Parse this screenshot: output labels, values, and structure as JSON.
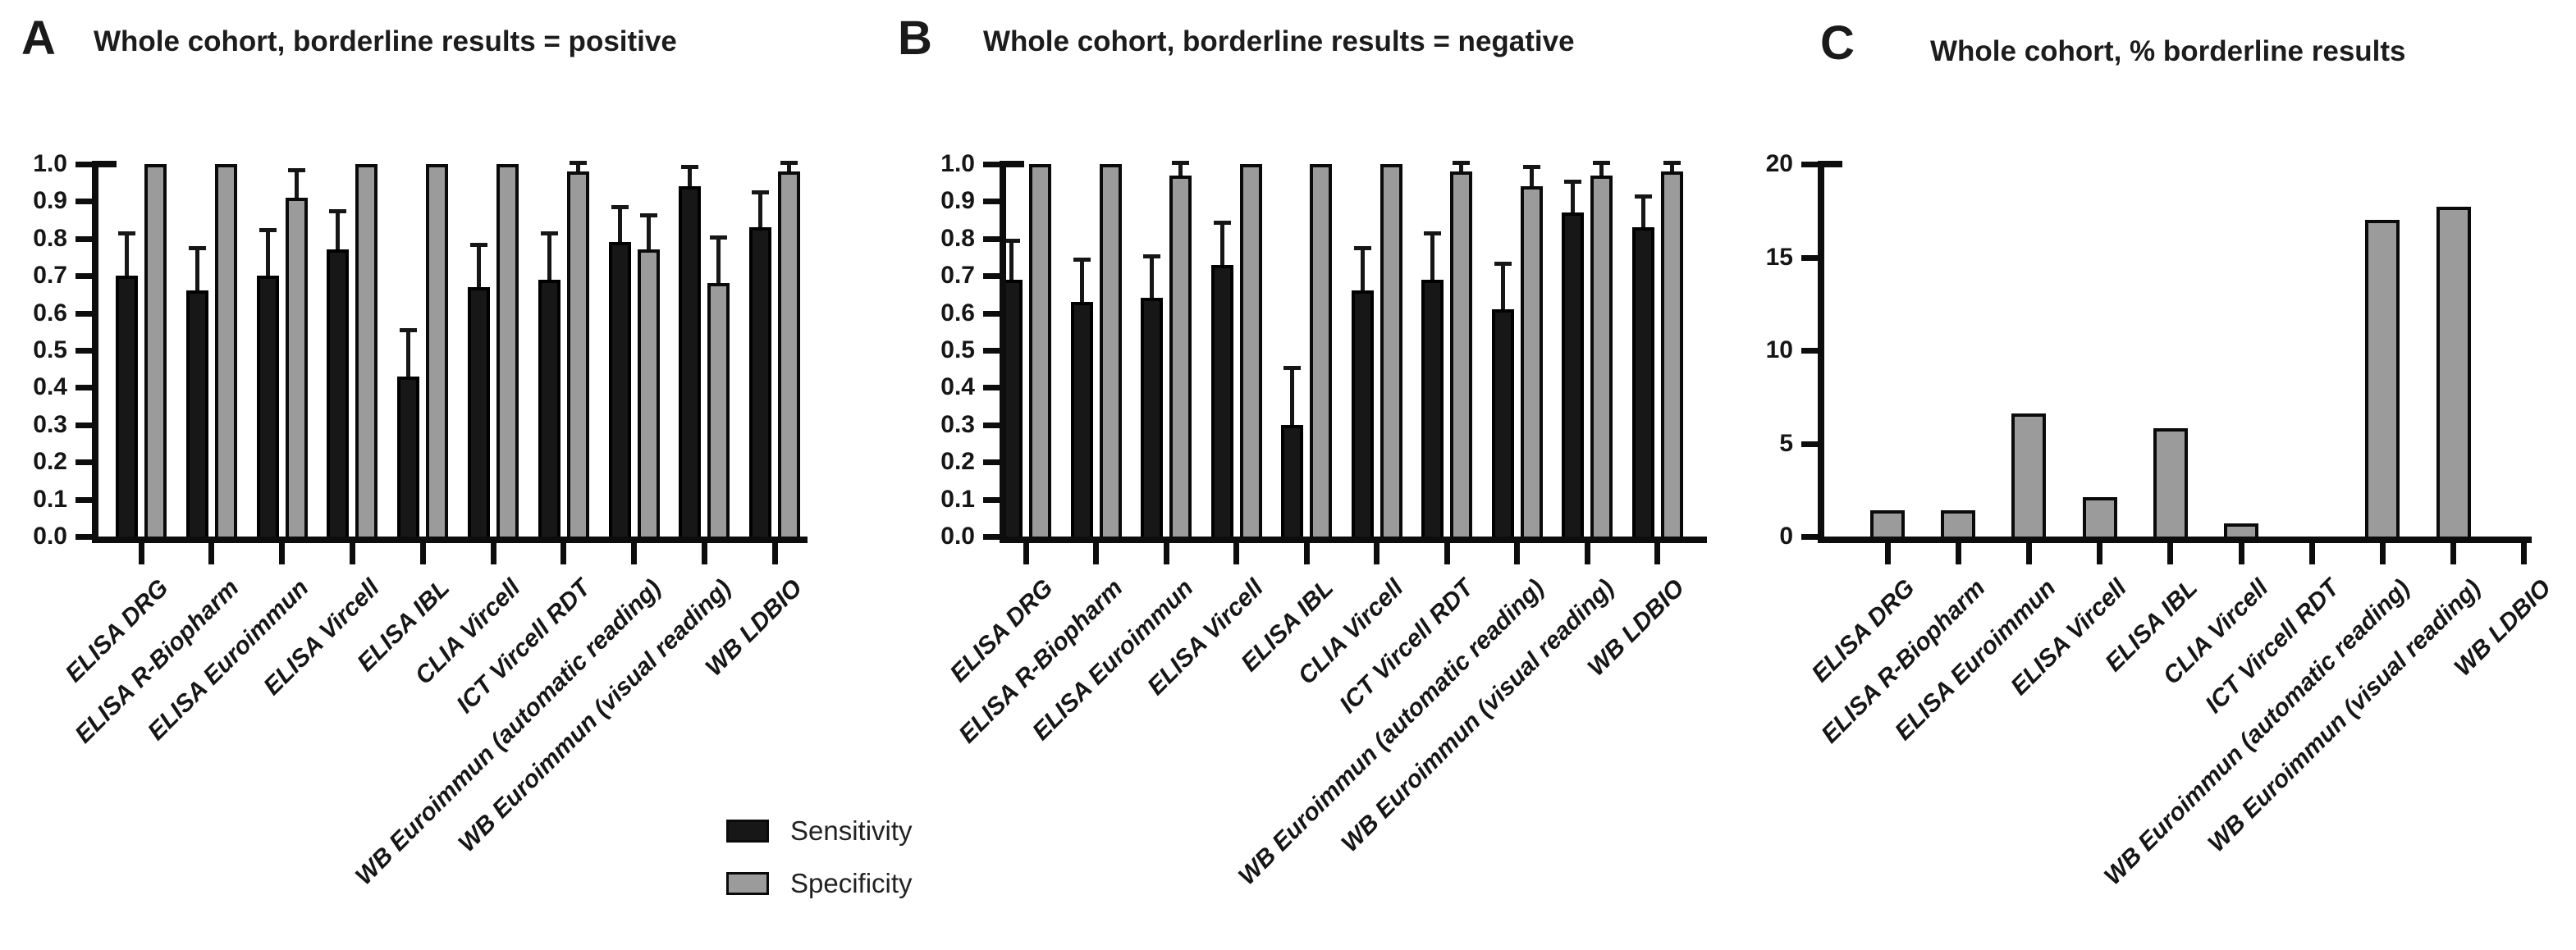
{
  "legend": {
    "items": [
      {
        "label": "Sensitivity",
        "color": "#171717"
      },
      {
        "label": "Specificity",
        "color": "#9b9b9b"
      }
    ]
  },
  "colors": {
    "sensitivity_bar": "#171717",
    "specificity_bar": "#9b9b9b",
    "axis": "#0d0d0d",
    "background": "#ffffff"
  },
  "categories": [
    "ELISA DRG",
    "ELISA R-Biopharm",
    "ELISA Euroimmun",
    "ELISA Vircell",
    "ELISA IBL",
    "CLIA Vircell",
    "ICT Vircell RDT",
    "WB Euroimmun (automatic reading)",
    "WB Euroimmun (visual reading)",
    "WB LDBIO"
  ],
  "chart_data": [
    {
      "panel": "A",
      "type": "bar",
      "title": "Whole cohort, borderline results = positive",
      "xlabel": "",
      "ylabel": "",
      "ylim": [
        0.0,
        1.0
      ],
      "ytick_labels": [
        "0.0",
        "0.1",
        "0.2",
        "0.3",
        "0.4",
        "0.5",
        "0.6",
        "0.7",
        "0.8",
        "0.9",
        "1.0"
      ],
      "grid": false,
      "legend_position": "below",
      "categories": [
        "ELISA DRG",
        "ELISA R-Biopharm",
        "ELISA Euroimmun",
        "ELISA Vircell",
        "ELISA IBL",
        "CLIA Vircell",
        "ICT Vircell RDT",
        "WB Euroimmun (automatic reading)",
        "WB Euroimmun (visual reading)",
        "WB LDBIO"
      ],
      "series": [
        {
          "name": "Sensitivity",
          "values": [
            0.7,
            0.66,
            0.7,
            0.77,
            0.43,
            0.67,
            0.69,
            0.79,
            0.94,
            0.83
          ],
          "err_high": [
            0.81,
            0.77,
            0.82,
            0.87,
            0.55,
            0.78,
            0.81,
            0.88,
            0.99,
            0.92
          ]
        },
        {
          "name": "Specificity",
          "values": [
            1.0,
            1.0,
            0.91,
            1.0,
            1.0,
            1.0,
            0.98,
            0.77,
            0.68,
            0.98
          ],
          "err_high": [
            1.0,
            1.0,
            0.98,
            1.0,
            1.0,
            1.0,
            1.0,
            0.86,
            0.8,
            1.0
          ]
        }
      ]
    },
    {
      "panel": "B",
      "type": "bar",
      "title": "Whole cohort, borderline results = negative",
      "xlabel": "",
      "ylabel": "",
      "ylim": [
        0.0,
        1.0
      ],
      "ytick_labels": [
        "0.0",
        "0.1",
        "0.2",
        "0.3",
        "0.4",
        "0.5",
        "0.6",
        "0.7",
        "0.8",
        "0.9",
        "1.0"
      ],
      "grid": false,
      "legend_position": "below",
      "categories": [
        "ELISA DRG",
        "ELISA R-Biopharm",
        "ELISA Euroimmun",
        "ELISA Vircell",
        "ELISA IBL",
        "CLIA Vircell",
        "ICT Vircell RDT",
        "WB Euroimmun (automatic reading)",
        "WB Euroimmun (visual reading)",
        "WB LDBIO"
      ],
      "series": [
        {
          "name": "Sensitivity",
          "values": [
            0.69,
            0.63,
            0.64,
            0.73,
            0.3,
            0.66,
            0.69,
            0.61,
            0.87,
            0.83
          ],
          "err_high": [
            0.79,
            0.74,
            0.75,
            0.84,
            0.45,
            0.77,
            0.81,
            0.73,
            0.95,
            0.91
          ]
        },
        {
          "name": "Specificity",
          "values": [
            1.0,
            1.0,
            0.97,
            1.0,
            1.0,
            1.0,
            0.98,
            0.94,
            0.97,
            0.98
          ],
          "err_high": [
            1.0,
            1.0,
            1.0,
            1.0,
            1.0,
            1.0,
            1.0,
            0.99,
            1.0,
            1.0
          ]
        }
      ]
    },
    {
      "panel": "C",
      "type": "bar",
      "title": "Whole cohort, % borderline results",
      "xlabel": "",
      "ylabel": "",
      "ylim": [
        0,
        20
      ],
      "ytick_labels": [
        "0",
        "5",
        "10",
        "15",
        "20"
      ],
      "grid": false,
      "legend_position": "none",
      "categories": [
        "ELISA DRG",
        "ELISA R-Biopharm",
        "ELISA Euroimmun",
        "ELISA Vircell",
        "ELISA IBL",
        "CLIA Vircell",
        "ICT Vircell RDT",
        "WB Euroimmun (automatic reading)",
        "WB Euroimmun (visual reading)",
        "WB LDBIO"
      ],
      "series": [
        {
          "name": "% borderline results",
          "values": [
            1.4,
            1.4,
            6.6,
            2.1,
            5.8,
            0.7,
            0,
            17.0,
            17.7,
            0
          ]
        }
      ]
    }
  ]
}
